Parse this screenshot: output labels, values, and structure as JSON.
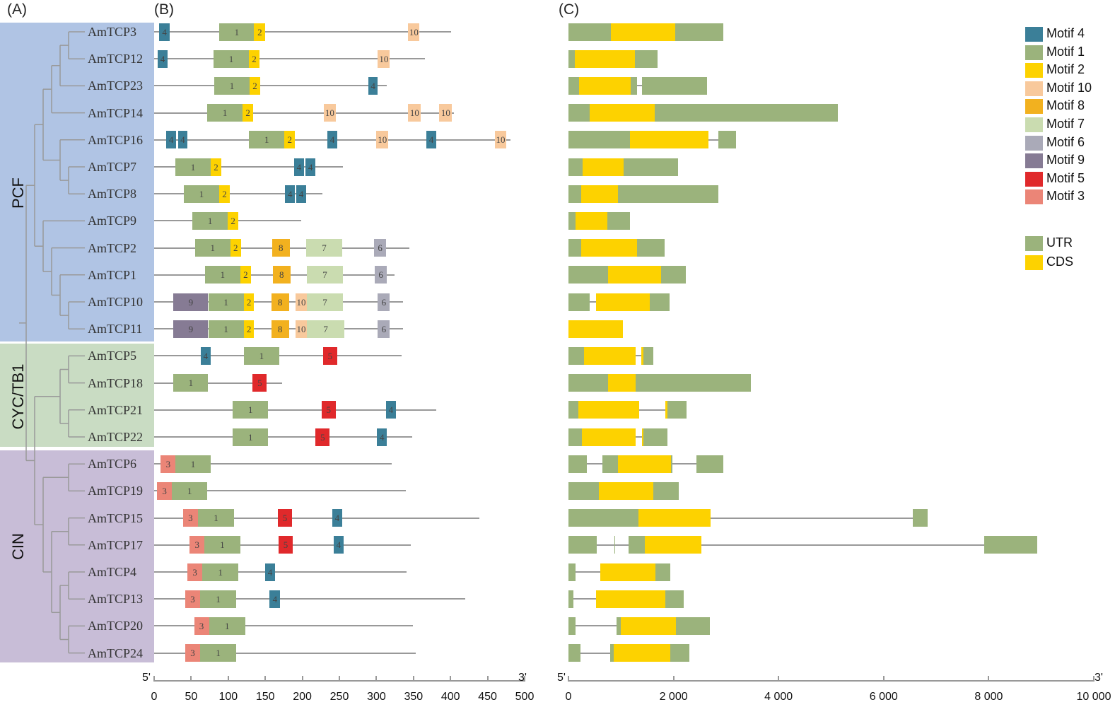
{
  "panels": {
    "a": "(A)",
    "b": "(B)",
    "c": "(C)"
  },
  "clades": [
    {
      "name": "PCF",
      "color": "#b0c4e4"
    },
    {
      "name": "CYC/TB1",
      "color": "#c9dcc3"
    },
    {
      "name": "CIN",
      "color": "#c8bdd7"
    }
  ],
  "motif_colors": {
    "4": "#3b7f98",
    "1": "#9bb37c",
    "2": "#fdd200",
    "10": "#f8c99c",
    "8": "#f2b11f",
    "7": "#cadcb0",
    "6": "#aaaab8",
    "9": "#867b94",
    "5": "#e0292b",
    "3": "#eb8577"
  },
  "structure_colors": {
    "UTR": "#9bb37c",
    "CDS": "#fdd200"
  },
  "legend": {
    "motifs": [
      {
        "id": "4",
        "label": "Motif 4"
      },
      {
        "id": "1",
        "label": "Motif 1"
      },
      {
        "id": "2",
        "label": "Motif 2"
      },
      {
        "id": "10",
        "label": "Motif 10"
      },
      {
        "id": "8",
        "label": "Motif 8"
      },
      {
        "id": "7",
        "label": "Motif 7"
      },
      {
        "id": "6",
        "label": "Motif 6"
      },
      {
        "id": "9",
        "label": "Motif 9"
      },
      {
        "id": "5",
        "label": "Motif 5"
      },
      {
        "id": "3",
        "label": "Motif 3"
      }
    ],
    "structure": [
      {
        "type": "UTR",
        "label": "UTR"
      },
      {
        "type": "CDS",
        "label": "CDS"
      }
    ]
  },
  "axis_b": {
    "five_prime": "5'",
    "three_prime": "3'",
    "range": [
      0,
      500
    ],
    "ticks": [
      "0",
      "50",
      "100",
      "150",
      "200",
      "250",
      "300",
      "350",
      "400",
      "450",
      "500"
    ]
  },
  "axis_c": {
    "five_prime": "5'",
    "three_prime": "3'",
    "range": [
      0,
      10000
    ],
    "ticks": [
      "0",
      "2 000",
      "4 000",
      "6 000",
      "8 000",
      "10 000"
    ]
  },
  "genes": [
    {
      "name": "AmTCP3",
      "clade": "PCF",
      "length": 401,
      "motifs": [
        [
          "4",
          7,
          21
        ],
        [
          "1",
          88,
          135
        ],
        [
          "2",
          135,
          150
        ],
        [
          "10",
          343,
          358
        ]
      ],
      "gene_length": 2950,
      "structure": [
        [
          "UTR",
          0,
          807
        ],
        [
          "CDS",
          807,
          2030
        ],
        [
          "UTR",
          2030,
          2950
        ]
      ]
    },
    {
      "name": "AmTCP12",
      "clade": "PCF",
      "length": 365,
      "motifs": [
        [
          "4",
          5,
          18
        ],
        [
          "1",
          80,
          128
        ],
        [
          "2",
          128,
          142
        ],
        [
          "10",
          302,
          318
        ]
      ],
      "gene_length": 1690,
      "structure": [
        [
          "UTR",
          0,
          120
        ],
        [
          "CDS",
          120,
          1260
        ],
        [
          "UTR",
          1260,
          1690
        ]
      ]
    },
    {
      "name": "AmTCP23",
      "clade": "PCF",
      "length": 314,
      "motifs": [
        [
          "1",
          81,
          129
        ],
        [
          "2",
          129,
          143
        ],
        [
          "4",
          289,
          302
        ]
      ],
      "gene_length": 2640,
      "structure": [
        [
          "UTR",
          0,
          200
        ],
        [
          "CDS",
          200,
          1190
        ],
        [
          "UTR",
          1190,
          1300
        ],
        [
          "UTR",
          1400,
          2640
        ]
      ]
    },
    {
      "name": "AmTCP14",
      "clade": "PCF",
      "length": 405,
      "motifs": [
        [
          "1",
          72,
          119
        ],
        [
          "2",
          119,
          134
        ],
        [
          "10",
          229,
          245
        ],
        [
          "10",
          343,
          360
        ],
        [
          "10",
          385,
          402
        ]
      ],
      "gene_length": 5130,
      "structure": [
        [
          "UTR",
          0,
          400
        ],
        [
          "CDS",
          400,
          1640
        ],
        [
          "UTR",
          1640,
          5130
        ]
      ]
    },
    {
      "name": "AmTCP16",
      "clade": "PCF",
      "length": 481,
      "motifs": [
        [
          "4",
          16,
          30
        ],
        [
          "4",
          32,
          45
        ],
        [
          "1",
          128,
          176
        ],
        [
          "2",
          176,
          190
        ],
        [
          "4",
          234,
          247
        ],
        [
          "10",
          300,
          316
        ],
        [
          "4",
          367,
          381
        ],
        [
          "10",
          460,
          475
        ]
      ],
      "gene_length": 3190,
      "structure": [
        [
          "UTR",
          0,
          1170
        ],
        [
          "CDS",
          1170,
          2660
        ],
        [
          "UTR",
          2850,
          3190
        ]
      ]
    },
    {
      "name": "AmTCP7",
      "clade": "PCF",
      "length": 255,
      "motifs": [
        [
          "1",
          29,
          76
        ],
        [
          "2",
          76,
          91
        ],
        [
          "4",
          189,
          202
        ],
        [
          "4",
          204,
          218
        ]
      ],
      "gene_length": 2080,
      "structure": [
        [
          "UTR",
          0,
          270
        ],
        [
          "CDS",
          270,
          1050
        ],
        [
          "UTR",
          1050,
          2080
        ]
      ]
    },
    {
      "name": "AmTCP8",
      "clade": "PCF",
      "length": 227,
      "motifs": [
        [
          "1",
          40,
          88
        ],
        [
          "2",
          88,
          102
        ],
        [
          "4",
          177,
          190
        ],
        [
          "4",
          192,
          205
        ]
      ],
      "gene_length": 2860,
      "structure": [
        [
          "UTR",
          0,
          240
        ],
        [
          "CDS",
          240,
          940
        ],
        [
          "UTR",
          940,
          2860
        ]
      ]
    },
    {
      "name": "AmTCP9",
      "clade": "PCF",
      "length": 198,
      "motifs": [
        [
          "1",
          52,
          99
        ],
        [
          "2",
          99,
          114
        ]
      ],
      "gene_length": 1170,
      "structure": [
        [
          "UTR",
          0,
          140
        ],
        [
          "CDS",
          140,
          740
        ],
        [
          "UTR",
          740,
          1170
        ]
      ]
    },
    {
      "name": "AmTCP2",
      "clade": "PCF",
      "length": 344,
      "motifs": [
        [
          "1",
          55,
          103
        ],
        [
          "2",
          103,
          117
        ],
        [
          "8",
          159,
          183
        ],
        [
          "7",
          205,
          254
        ],
        [
          "6",
          297,
          313
        ]
      ],
      "gene_length": 1830,
      "structure": [
        [
          "UTR",
          0,
          240
        ],
        [
          "CDS",
          240,
          1300
        ],
        [
          "UTR",
          1300,
          1830
        ]
      ]
    },
    {
      "name": "AmTCP1",
      "clade": "PCF",
      "length": 324,
      "motifs": [
        [
          "1",
          69,
          116
        ],
        [
          "2",
          116,
          131
        ],
        [
          "8",
          160,
          184
        ],
        [
          "7",
          206,
          255
        ],
        [
          "6",
          298,
          314
        ]
      ],
      "gene_length": 2240,
      "structure": [
        [
          "UTR",
          0,
          750
        ],
        [
          "CDS",
          750,
          1760
        ],
        [
          "UTR",
          1760,
          2240
        ]
      ]
    },
    {
      "name": "AmTCP10",
      "clade": "PCF",
      "length": 336,
      "motifs": [
        [
          "9",
          26,
          73
        ],
        [
          "1",
          73,
          121
        ],
        [
          "2",
          121,
          135
        ],
        [
          "8",
          158,
          182
        ],
        [
          "10",
          191,
          206
        ],
        [
          "7",
          206,
          255
        ],
        [
          "6",
          302,
          318
        ]
      ],
      "gene_length": 1930,
      "structure": [
        [
          "UTR",
          0,
          400
        ],
        [
          "CDS",
          520,
          1550
        ],
        [
          "UTR",
          1550,
          1930
        ]
      ]
    },
    {
      "name": "AmTCP11",
      "clade": "PCF",
      "length": 336,
      "motifs": [
        [
          "9",
          26,
          73
        ],
        [
          "1",
          73,
          121
        ],
        [
          "2",
          121,
          135
        ],
        [
          "8",
          158,
          182
        ],
        [
          "10",
          191,
          206
        ],
        [
          "7",
          206,
          257
        ],
        [
          "6",
          302,
          318
        ]
      ],
      "gene_length": 1030,
      "structure": [
        [
          "CDS",
          0,
          1030
        ]
      ]
    },
    {
      "name": "AmTCP5",
      "clade": "CYC/TB1",
      "length": 334,
      "motifs": [
        [
          "4",
          63,
          76
        ],
        [
          "1",
          121,
          169
        ],
        [
          "5",
          228,
          247
        ]
      ],
      "gene_length": 1610,
      "structure": [
        [
          "UTR",
          0,
          300
        ],
        [
          "CDS",
          300,
          1280
        ],
        [
          "CDS",
          1380,
          1420
        ],
        [
          "UTR",
          1420,
          1610
        ]
      ]
    },
    {
      "name": "AmTCP18",
      "clade": "CYC/TB1",
      "length": 173,
      "motifs": [
        [
          "1",
          26,
          73
        ],
        [
          "5",
          133,
          152
        ]
      ],
      "gene_length": 3470,
      "structure": [
        [
          "UTR",
          0,
          755
        ],
        [
          "CDS",
          755,
          1280
        ],
        [
          "UTR",
          1280,
          3470
        ]
      ]
    },
    {
      "name": "AmTCP21",
      "clade": "CYC/TB1",
      "length": 381,
      "motifs": [
        [
          "1",
          106,
          154
        ],
        [
          "5",
          226,
          245
        ],
        [
          "4",
          313,
          326
        ]
      ],
      "gene_length": 2250,
      "structure": [
        [
          "UTR",
          0,
          190
        ],
        [
          "CDS",
          190,
          1340
        ],
        [
          "CDS",
          1850,
          1880
        ],
        [
          "UTR",
          1880,
          2250
        ]
      ]
    },
    {
      "name": "AmTCP22",
      "clade": "CYC/TB1",
      "length": 348,
      "motifs": [
        [
          "1",
          106,
          154
        ],
        [
          "5",
          218,
          237
        ],
        [
          "4",
          301,
          314
        ]
      ],
      "gene_length": 1890,
      "structure": [
        [
          "UTR",
          0,
          260
        ],
        [
          "CDS",
          260,
          1280
        ],
        [
          "CDS",
          1400,
          1430
        ],
        [
          "UTR",
          1430,
          1890
        ]
      ]
    },
    {
      "name": "AmTCP6",
      "clade": "CIN",
      "length": 321,
      "motifs": [
        [
          "3",
          9,
          29
        ],
        [
          "1",
          29,
          76
        ]
      ],
      "gene_length": 2950,
      "structure": [
        [
          "UTR",
          0,
          350
        ],
        [
          "UTR",
          650,
          940
        ],
        [
          "CDS",
          940,
          1950
        ],
        [
          "UTR",
          1950,
          1980
        ],
        [
          "UTR",
          2440,
          2950
        ]
      ]
    },
    {
      "name": "AmTCP19",
      "clade": "CIN",
      "length": 340,
      "motifs": [
        [
          "3",
          4,
          24
        ],
        [
          "1",
          24,
          72
        ]
      ],
      "gene_length": 2100,
      "structure": [
        [
          "UTR",
          0,
          580
        ],
        [
          "CDS",
          580,
          1620
        ],
        [
          "UTR",
          1620,
          2100
        ]
      ]
    },
    {
      "name": "AmTCP15",
      "clade": "CIN",
      "length": 439,
      "motifs": [
        [
          "3",
          39,
          59
        ],
        [
          "1",
          59,
          108
        ],
        [
          "5",
          167,
          186
        ],
        [
          "4",
          240,
          254
        ]
      ],
      "gene_length": 6840,
      "structure": [
        [
          "UTR",
          0,
          1330
        ],
        [
          "CDS",
          1330,
          2710
        ],
        [
          "UTR",
          6560,
          6840
        ]
      ]
    },
    {
      "name": "AmTCP17",
      "clade": "CIN",
      "length": 346,
      "motifs": [
        [
          "3",
          48,
          68
        ],
        [
          "1",
          68,
          116
        ],
        [
          "5",
          168,
          187
        ],
        [
          "4",
          242,
          256
        ]
      ],
      "gene_length": 8930,
      "structure": [
        [
          "UTR",
          0,
          540
        ],
        [
          "UTR",
          870,
          890
        ],
        [
          "UTR",
          1150,
          1450
        ],
        [
          "CDS",
          1450,
          2530
        ],
        [
          "UTR",
          7910,
          8930
        ]
      ]
    },
    {
      "name": "AmTCP4",
      "clade": "CIN",
      "length": 341,
      "motifs": [
        [
          "3",
          45,
          65
        ],
        [
          "1",
          65,
          114
        ],
        [
          "4",
          150,
          163
        ]
      ],
      "gene_length": 1940,
      "structure": [
        [
          "UTR",
          0,
          140
        ],
        [
          "CDS",
          600,
          1660
        ],
        [
          "UTR",
          1660,
          1940
        ]
      ]
    },
    {
      "name": "AmTCP13",
      "clade": "CIN",
      "length": 420,
      "motifs": [
        [
          "3",
          42,
          62
        ],
        [
          "1",
          62,
          111
        ],
        [
          "4",
          156,
          170
        ]
      ],
      "gene_length": 2200,
      "structure": [
        [
          "UTR",
          0,
          90
        ],
        [
          "CDS",
          530,
          1840
        ],
        [
          "UTR",
          1840,
          2200
        ]
      ]
    },
    {
      "name": "AmTCP20",
      "clade": "CIN",
      "length": 349,
      "motifs": [
        [
          "3",
          54,
          74
        ],
        [
          "1",
          74,
          123
        ]
      ],
      "gene_length": 2690,
      "structure": [
        [
          "UTR",
          0,
          140
        ],
        [
          "UTR",
          920,
          1000
        ],
        [
          "CDS",
          1000,
          2040
        ],
        [
          "UTR",
          2040,
          2690
        ]
      ]
    },
    {
      "name": "AmTCP24",
      "clade": "CIN",
      "length": 353,
      "motifs": [
        [
          "3",
          42,
          62
        ],
        [
          "1",
          62,
          111
        ]
      ],
      "gene_length": 2300,
      "structure": [
        [
          "UTR",
          0,
          230
        ],
        [
          "UTR",
          800,
          860
        ],
        [
          "CDS",
          860,
          1940
        ],
        [
          "UTR",
          1940,
          2300
        ]
      ]
    }
  ]
}
